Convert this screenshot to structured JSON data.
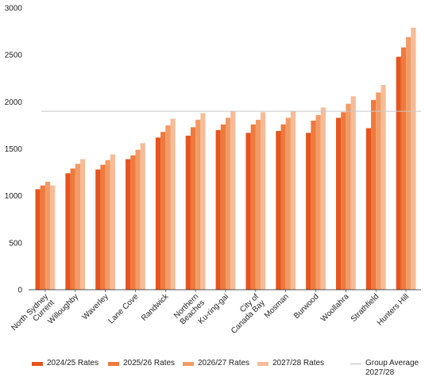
{
  "chart_data": {
    "type": "bar",
    "categories": [
      [
        "North Sydney",
        "Current"
      ],
      [
        "Willoughby"
      ],
      [
        "Waverley"
      ],
      [
        "Lane Cove"
      ],
      [
        "Randwick"
      ],
      [
        "Northern",
        "Beaches"
      ],
      [
        "Ku-ring-gai"
      ],
      [
        "City of",
        "Canada Bay"
      ],
      [
        "Mosman"
      ],
      [
        "Burwood"
      ],
      [
        "Woollahra"
      ],
      [
        "Strathfield"
      ],
      [
        "Hunters Hill"
      ]
    ],
    "series": [
      {
        "name": "2024/25 Rates",
        "color": "#e6541f",
        "values": [
          1070,
          1240,
          1280,
          1390,
          1620,
          1640,
          1700,
          1670,
          1690,
          1670,
          1830,
          1720,
          2480
        ]
      },
      {
        "name": "2025/26 Rates",
        "color": "#ee7a3c",
        "values": [
          1110,
          1290,
          1330,
          1430,
          1680,
          1730,
          1760,
          1760,
          1760,
          1800,
          1890,
          2020,
          2580
        ]
      },
      {
        "name": "2026/27 Rates",
        "color": "#f39b66",
        "values": [
          1150,
          1340,
          1380,
          1490,
          1750,
          1810,
          1830,
          1810,
          1830,
          1860,
          1980,
          2100,
          2690
        ]
      },
      {
        "name": "2027/28 Rates",
        "color": "#f7bc97",
        "values": [
          1110,
          1390,
          1440,
          1560,
          1820,
          1880,
          1900,
          1890,
          1900,
          1940,
          2060,
          2180,
          2790
        ]
      }
    ],
    "reference_line": {
      "name": [
        "Group Average",
        "2027/28"
      ],
      "value": 1900,
      "color": "#c8c8c8"
    },
    "yticks": [
      "0",
      "500",
      "1000",
      "1500",
      "2000",
      "2500",
      "3000"
    ],
    "ylim": [
      0,
      3000
    ],
    "grid": false,
    "legend_position": "bottom"
  }
}
